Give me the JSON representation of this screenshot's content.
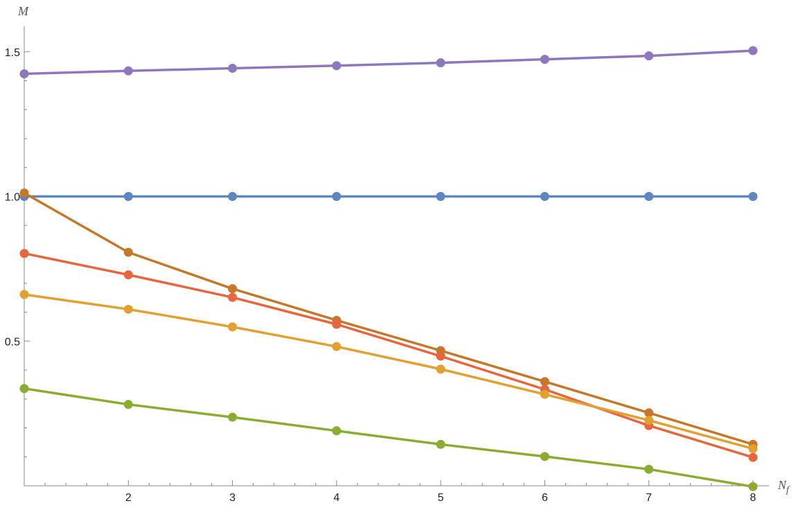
{
  "chart_data": {
    "type": "line",
    "xlabel_main": "N",
    "xlabel_sub": "f",
    "ylabel": "M",
    "x": [
      1,
      2,
      3,
      4,
      5,
      6,
      7,
      8
    ],
    "xlim": [
      1,
      8
    ],
    "ylim": [
      0,
      1.6
    ],
    "xticks": [
      2,
      3,
      4,
      5,
      6,
      7,
      8
    ],
    "yticks": [
      0.5,
      1.0,
      1.5
    ],
    "ytick_labels": [
      "0.5",
      "1.0",
      "1.5"
    ],
    "grid": false,
    "series": [
      {
        "color": "#8E77BD",
        "values": [
          1.424,
          1.434,
          1.443,
          1.452,
          1.462,
          1.474,
          1.486,
          1.504
        ]
      },
      {
        "color": "#5E86C1",
        "values": [
          1.0,
          1.0,
          1.0,
          1.0,
          1.0,
          1.0,
          1.0,
          1.0
        ]
      },
      {
        "color": "#C5782A",
        "values": [
          1.012,
          0.807,
          0.681,
          0.572,
          0.467,
          0.36,
          0.252,
          0.143
        ]
      },
      {
        "color": "#E8653E",
        "values": [
          0.803,
          0.729,
          0.651,
          0.558,
          0.448,
          0.333,
          0.208,
          0.098
        ]
      },
      {
        "color": "#E2A030",
        "values": [
          0.661,
          0.61,
          0.549,
          0.481,
          0.403,
          0.316,
          0.226,
          0.128
        ]
      },
      {
        "color": "#8AAC30",
        "values": [
          0.336,
          0.281,
          0.237,
          0.19,
          0.143,
          0.101,
          0.057,
          -0.003
        ]
      }
    ]
  }
}
